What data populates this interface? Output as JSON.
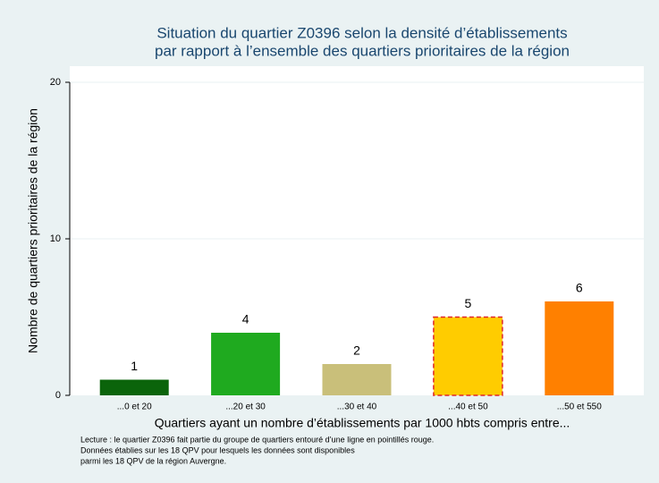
{
  "chart_data": {
    "type": "bar",
    "title": [
      "Situation du quartier Z0396 selon la densité d’établissements",
      "par rapport à l’ensemble des quartiers prioritaires de la région"
    ],
    "x_label": "Quartiers ayant un nombre d’établissements par 1000 hbts compris entre...",
    "y_label": "Nombre de quartiers prioritaires de la région",
    "categories": [
      "...0 et 20",
      "...20 et 30",
      "...30 et 40",
      "...40 et 50",
      "...50 et 550"
    ],
    "values": [
      1,
      4,
      2,
      5,
      6
    ],
    "colors": [
      "#0b640b",
      "#1faa1f",
      "#c9bf7a",
      "#ffcc00",
      "#ff8000"
    ],
    "edge_colors": [
      null,
      null,
      null,
      "#e0262a",
      null
    ],
    "ylim": [
      0,
      20
    ],
    "yticks": [
      0,
      10,
      20
    ],
    "grid": true,
    "notes": [
      "Lecture : le quartier Z0396 fait partie du groupe de quartiers entouré d’une ligne en pointillés rouge.",
      "Données établies sur les 18 QPV pour lesquels les données sont disponibles",
      "parmi les 18 QPV de la région Auvergne."
    ]
  }
}
